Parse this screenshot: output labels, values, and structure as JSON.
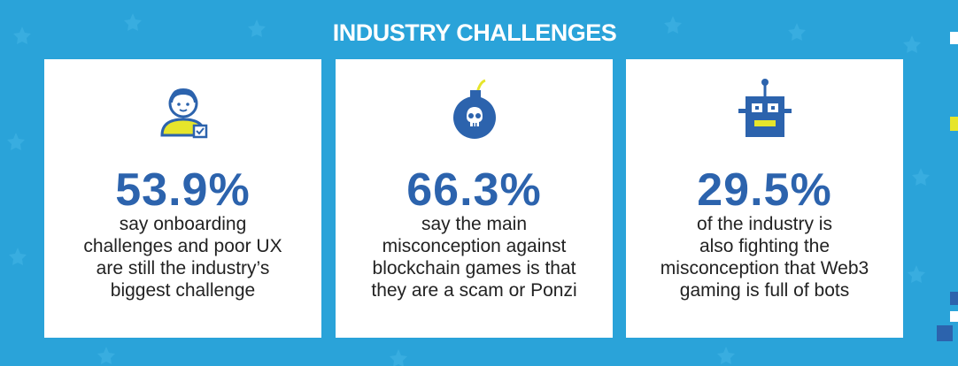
{
  "title": "INDUSTRY CHALLENGES",
  "colors": {
    "background": "#2aa3d9",
    "stat_blue": "#2c63ad",
    "accent_yellow": "#e6e52b",
    "card": "#ffffff"
  },
  "cards": [
    {
      "icon": "person-icon",
      "stat": "53.9%",
      "lines": [
        "say onboarding",
        "challenges and poor UX",
        "are still the industry’s",
        "biggest challenge"
      ]
    },
    {
      "icon": "skull-bomb-icon",
      "stat": "66.3%",
      "lines": [
        "say the main",
        "misconception against",
        "blockchain games is that",
        "they are a scam or Ponzi"
      ]
    },
    {
      "icon": "robot-icon",
      "stat": "29.5%",
      "lines": [
        "of the industry is",
        "also fighting the",
        "misconception that Web3",
        "gaming is full of bots"
      ]
    }
  ]
}
